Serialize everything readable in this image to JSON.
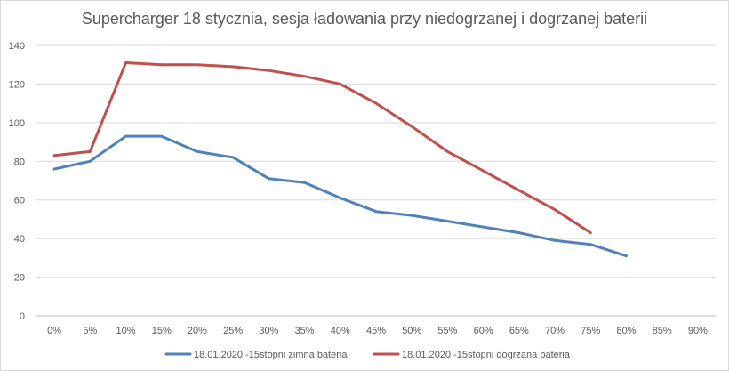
{
  "chart_data": {
    "type": "line",
    "title": "Supercharger 18 stycznia, sesja ładowania przy niedogrzanej i dogrzanej baterii",
    "xlabel": "",
    "ylabel": "",
    "categories": [
      "0%",
      "5%",
      "10%",
      "15%",
      "20%",
      "25%",
      "30%",
      "35%",
      "40%",
      "45%",
      "50%",
      "55%",
      "60%",
      "65%",
      "70%",
      "75%",
      "80%",
      "85%",
      "90%"
    ],
    "ylim": [
      0,
      140
    ],
    "yticks": [
      0,
      20,
      40,
      60,
      80,
      100,
      120,
      140
    ],
    "grid": true,
    "legend_position": "bottom",
    "series": [
      {
        "name": "18.01.2020 -15stopni zimna bateria",
        "color": "#4f81bd",
        "values": [
          76,
          80,
          93,
          93,
          85,
          82,
          71,
          69,
          61,
          54,
          52,
          49,
          46,
          43,
          39,
          37,
          31,
          null,
          null
        ]
      },
      {
        "name": "18.01.2020 -15stopni dogrzana bateria",
        "color": "#c0504d",
        "values": [
          83,
          85,
          131,
          130,
          130,
          129,
          127,
          124,
          120,
          110,
          98,
          85,
          75,
          65,
          55,
          43,
          null,
          null,
          null
        ]
      }
    ]
  }
}
